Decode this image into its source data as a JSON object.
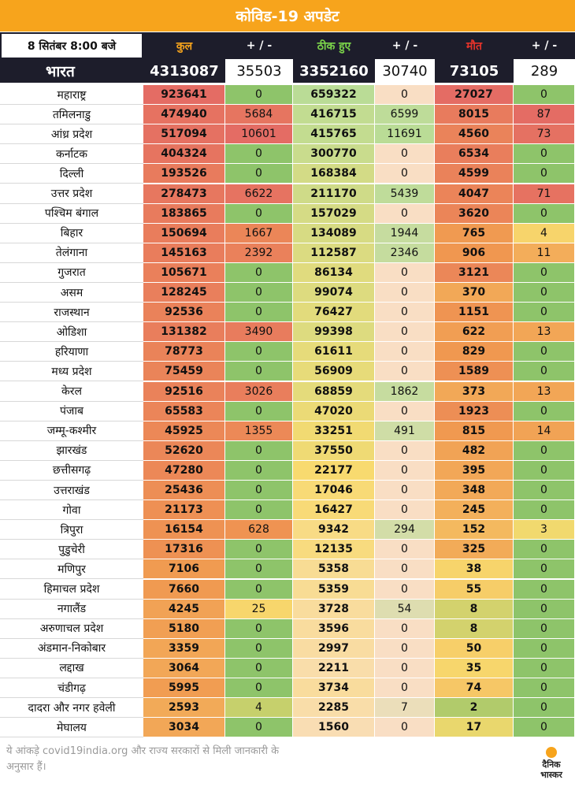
{
  "title": "कोविड-19 अपडेट",
  "header": {
    "date": "8 सितंबर  8:00 बजे",
    "total": "कुल",
    "delta1": "+ / -",
    "recovered": "ठीक हुए",
    "delta2": "+ / -",
    "deaths": "मौत",
    "delta3": "+ / -",
    "colors": {
      "total": "#f7a41c",
      "recovered": "#7bd34a",
      "deaths": "#e4332a",
      "delta": "#ffffff"
    }
  },
  "national": {
    "label": "भारत",
    "total": "4313087",
    "total_delta": "35503",
    "recovered": "3352160",
    "recovered_delta": "30740",
    "deaths": "73105",
    "deaths_delta": "289"
  },
  "chart_data": {
    "type": "table",
    "columns": [
      "कुल",
      "+ / -",
      "ठीक हुए",
      "+ / -",
      "मौत",
      "+ / -"
    ],
    "rows": [
      {
        "state": "महाराष्ट्र",
        "values": [
          923641,
          0,
          659322,
          0,
          27027,
          0
        ]
      },
      {
        "state": "तमिलनाडु",
        "values": [
          474940,
          5684,
          416715,
          6599,
          8015,
          87
        ]
      },
      {
        "state": "आंध्र प्रदेश",
        "values": [
          517094,
          10601,
          415765,
          11691,
          4560,
          73
        ]
      },
      {
        "state": "कर्नाटक",
        "values": [
          404324,
          0,
          300770,
          0,
          6534,
          0
        ]
      },
      {
        "state": "दिल्ली",
        "values": [
          193526,
          0,
          168384,
          0,
          4599,
          0
        ]
      },
      {
        "state": "उत्तर प्रदेश",
        "values": [
          278473,
          6622,
          211170,
          5439,
          4047,
          71
        ]
      },
      {
        "state": "पश्चिम बंगाल",
        "values": [
          183865,
          0,
          157029,
          0,
          3620,
          0
        ]
      },
      {
        "state": "बिहार",
        "values": [
          150694,
          1667,
          134089,
          1944,
          765,
          4
        ]
      },
      {
        "state": "तेलंगाना",
        "values": [
          145163,
          2392,
          112587,
          2346,
          906,
          11
        ]
      },
      {
        "state": "गुजरात",
        "values": [
          105671,
          0,
          86134,
          0,
          3121,
          0
        ]
      },
      {
        "state": "असम",
        "values": [
          128245,
          0,
          99074,
          0,
          370,
          0
        ]
      },
      {
        "state": "राजस्थान",
        "values": [
          92536,
          0,
          76427,
          0,
          1151,
          0
        ]
      },
      {
        "state": "ओडिशा",
        "values": [
          131382,
          3490,
          99398,
          0,
          622,
          13
        ]
      },
      {
        "state": "हरियाणा",
        "values": [
          78773,
          0,
          61611,
          0,
          829,
          0
        ]
      },
      {
        "state": "मध्य प्रदेश",
        "values": [
          75459,
          0,
          56909,
          0,
          1589,
          0
        ]
      },
      {
        "state": "केरल",
        "values": [
          92516,
          3026,
          68859,
          1862,
          373,
          13
        ]
      },
      {
        "state": "पंजाब",
        "values": [
          65583,
          0,
          47020,
          0,
          1923,
          0
        ]
      },
      {
        "state": "जम्मू-कश्मीर",
        "values": [
          45925,
          1355,
          33251,
          491,
          815,
          14
        ]
      },
      {
        "state": "झारखंड",
        "values": [
          52620,
          0,
          37550,
          0,
          482,
          0
        ]
      },
      {
        "state": "छत्तीसगढ़",
        "values": [
          47280,
          0,
          22177,
          0,
          395,
          0
        ]
      },
      {
        "state": "उत्तराखंड",
        "values": [
          25436,
          0,
          17046,
          0,
          348,
          0
        ]
      },
      {
        "state": "गोवा",
        "values": [
          21173,
          0,
          16427,
          0,
          245,
          0
        ]
      },
      {
        "state": "त्रिपुरा",
        "values": [
          16154,
          628,
          9342,
          294,
          152,
          3
        ]
      },
      {
        "state": "पुडुचेरी",
        "values": [
          17316,
          0,
          12135,
          0,
          325,
          0
        ]
      },
      {
        "state": "मणिपुर",
        "values": [
          7106,
          0,
          5358,
          0,
          38,
          0
        ]
      },
      {
        "state": "हिमाचल प्रदेश",
        "values": [
          7660,
          0,
          5359,
          0,
          55,
          0
        ]
      },
      {
        "state": "नगालैंड",
        "values": [
          4245,
          25,
          3728,
          54,
          8,
          0
        ]
      },
      {
        "state": "अरुणाचल प्रदेश",
        "values": [
          5180,
          0,
          3596,
          0,
          8,
          0
        ]
      },
      {
        "state": "अंडमान-निकोबार",
        "values": [
          3359,
          0,
          2997,
          0,
          50,
          0
        ]
      },
      {
        "state": "लद्दाख",
        "values": [
          3064,
          0,
          2211,
          0,
          35,
          0
        ]
      },
      {
        "state": "चंडीगढ़",
        "values": [
          5995,
          0,
          3734,
          0,
          74,
          0
        ]
      },
      {
        "state": "दादरा और नगर हवेली",
        "values": [
          2593,
          4,
          2285,
          7,
          2,
          0
        ]
      },
      {
        "state": "मेघालय",
        "values": [
          3034,
          0,
          1560,
          0,
          17,
          0
        ]
      }
    ]
  },
  "footer": {
    "note": "ये आंकड़े covid19india.org और राज्य सरकारों से मिली जानकारी के अनुसार हैं।",
    "logo_line1": "दैनिक",
    "logo_line2": "भास्कर"
  }
}
